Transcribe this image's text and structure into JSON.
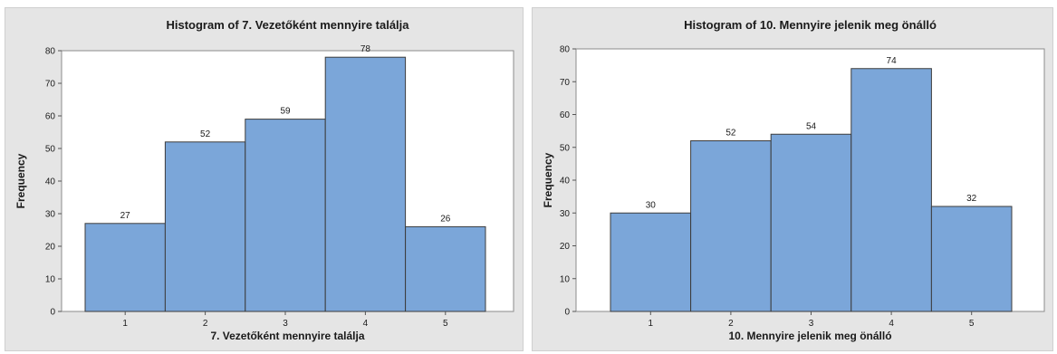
{
  "chart_data": [
    {
      "type": "bar",
      "title": "Histogram of 7. Vezetőként mennyire találja",
      "xlabel": "7. Vezetőként mennyire találja",
      "ylabel": "Frequency",
      "categories": [
        "1",
        "2",
        "3",
        "4",
        "5"
      ],
      "values": [
        27,
        52,
        59,
        78,
        26
      ],
      "data_labels": [
        "27",
        "52",
        "59",
        "78",
        "26"
      ],
      "ylim": [
        0,
        80
      ],
      "yticks": [
        0,
        10,
        20,
        30,
        40,
        50,
        60,
        70,
        80
      ],
      "grid": false,
      "bar_color": "#7ba6d9",
      "panel_color": "#e5e5e5"
    },
    {
      "type": "bar",
      "title": "Histogram of 10. Mennyire jelenik meg önálló",
      "xlabel": "10. Mennyire jelenik meg önálló",
      "ylabel": "Frequency",
      "categories": [
        "1",
        "2",
        "3",
        "4",
        "5"
      ],
      "values": [
        30,
        52,
        54,
        74,
        32
      ],
      "data_labels": [
        "30",
        "52",
        "54",
        "74",
        "32"
      ],
      "ylim": [
        0,
        80
      ],
      "yticks": [
        0,
        10,
        20,
        30,
        40,
        50,
        60,
        70,
        80
      ],
      "grid": false,
      "bar_color": "#7ba6d9",
      "panel_color": "#e5e5e5"
    }
  ]
}
